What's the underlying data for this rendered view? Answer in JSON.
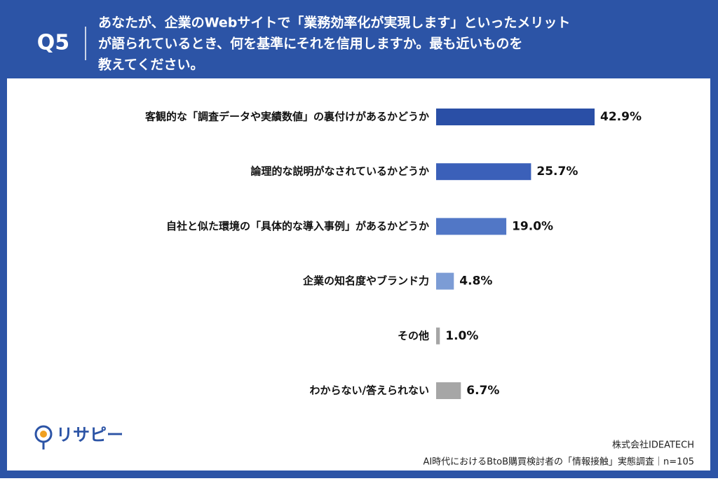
{
  "chart_data": {
    "type": "hbar",
    "question_number": "Q5",
    "title_lines": [
      "あなたが、企業のWebサイトで「業務効率化が実現します」といったメリット",
      "が語られているとき、何を基準にそれを信用しますか。最も近いものを",
      "教えてください。"
    ],
    "categories": [
      "客観的な「調査データや実績数値」の裏付けがあるかどうか",
      "論理的な説明がなされているかどうか",
      "自社と似た環境の「具体的な導入事例」があるかどうか",
      "企業の知名度やブランド力",
      "その他",
      "わからない/答えられない"
    ],
    "values": [
      42.9,
      25.7,
      19.0,
      4.8,
      1.0,
      6.7
    ],
    "value_labels": [
      "42.9%",
      "25.7%",
      "19.0%",
      "4.8%",
      "1.0%",
      "6.7%"
    ],
    "colors": [
      "#2a4fa6",
      "#3b60b9",
      "#5177c6",
      "#7c9cd5",
      "#a6a6a6",
      "#a6a6a6"
    ],
    "logo": "リサピー",
    "source_company": "株式会社IDEATECH",
    "source_survey": "AI時代におけるBtoB購買検討者の「情報接触」実態調査｜n=105"
  }
}
